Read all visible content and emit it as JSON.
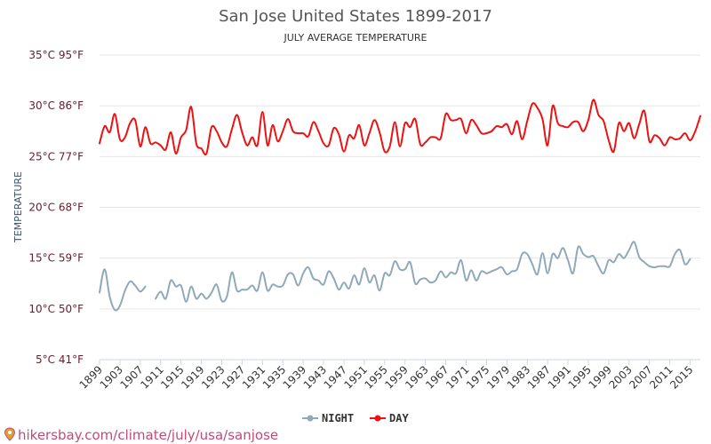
{
  "chart_data": {
    "type": "line",
    "title": "San Jose United States 1899-2017",
    "subtitle": "JULY AVERAGE TEMPERATURE",
    "ylabel": "TEMPERATURE",
    "xlabel": "",
    "ylim": [
      5,
      35
    ],
    "xlim": [
      1899,
      2017
    ],
    "y_ticks": [
      {
        "value": 35,
        "label": "35°C 95°F"
      },
      {
        "value": 30,
        "label": "30°C 86°F"
      },
      {
        "value": 25,
        "label": "25°C 77°F"
      },
      {
        "value": 20,
        "label": "20°C 68°F"
      },
      {
        "value": 15,
        "label": "15°C 59°F"
      },
      {
        "value": 10,
        "label": "10°C 50°F"
      },
      {
        "value": 5,
        "label": "5°C 41°F"
      }
    ],
    "x_ticks": [
      1899,
      1903,
      1907,
      1911,
      1915,
      1919,
      1923,
      1927,
      1931,
      1935,
      1939,
      1943,
      1947,
      1951,
      1955,
      1959,
      1963,
      1967,
      1971,
      1975,
      1979,
      1983,
      1987,
      1991,
      1995,
      1999,
      2003,
      2007,
      2011,
      2015
    ],
    "grid": "horizontal",
    "legend_position": "bottom",
    "series": [
      {
        "name": "NIGHT",
        "color": "#8fa9b8",
        "points": [
          [
            1899,
            11.6
          ],
          [
            1900,
            13.9
          ],
          [
            1901,
            11.2
          ],
          [
            1902,
            9.9
          ],
          [
            1903,
            10.3
          ],
          [
            1904,
            11.8
          ],
          [
            1905,
            12.7
          ],
          [
            1906,
            12.3
          ],
          [
            1907,
            11.7
          ],
          [
            1908,
            12.2
          ],
          [
            1910,
            11.0
          ],
          [
            1911,
            11.7
          ],
          [
            1912,
            11.0
          ],
          [
            1913,
            12.8
          ],
          [
            1914,
            12.2
          ],
          [
            1915,
            12.3
          ],
          [
            1916,
            10.7
          ],
          [
            1917,
            12.2
          ],
          [
            1918,
            11.0
          ],
          [
            1919,
            11.5
          ],
          [
            1920,
            11.0
          ],
          [
            1921,
            11.6
          ],
          [
            1922,
            12.4
          ],
          [
            1923,
            10.8
          ],
          [
            1924,
            11.2
          ],
          [
            1925,
            13.6
          ],
          [
            1926,
            11.8
          ],
          [
            1927,
            11.9
          ],
          [
            1928,
            11.9
          ],
          [
            1929,
            12.3
          ],
          [
            1930,
            11.8
          ],
          [
            1931,
            13.6
          ],
          [
            1932,
            11.8
          ],
          [
            1933,
            12.4
          ],
          [
            1934,
            12.2
          ],
          [
            1935,
            12.3
          ],
          [
            1936,
            13.4
          ],
          [
            1937,
            13.4
          ],
          [
            1938,
            12.3
          ],
          [
            1939,
            13.5
          ],
          [
            1940,
            14.1
          ],
          [
            1941,
            13.0
          ],
          [
            1942,
            12.8
          ],
          [
            1943,
            12.4
          ],
          [
            1944,
            13.7
          ],
          [
            1945,
            13.0
          ],
          [
            1946,
            11.9
          ],
          [
            1947,
            12.6
          ],
          [
            1948,
            12.0
          ],
          [
            1949,
            13.3
          ],
          [
            1950,
            12.4
          ],
          [
            1951,
            14.0
          ],
          [
            1952,
            12.6
          ],
          [
            1953,
            13.3
          ],
          [
            1954,
            11.8
          ],
          [
            1955,
            13.5
          ],
          [
            1956,
            13.3
          ],
          [
            1957,
            14.7
          ],
          [
            1958,
            13.9
          ],
          [
            1959,
            13.9
          ],
          [
            1960,
            14.6
          ],
          [
            1961,
            12.5
          ],
          [
            1962,
            12.9
          ],
          [
            1963,
            13.0
          ],
          [
            1964,
            12.6
          ],
          [
            1965,
            12.8
          ],
          [
            1966,
            13.7
          ],
          [
            1967,
            13.1
          ],
          [
            1968,
            13.6
          ],
          [
            1969,
            13.5
          ],
          [
            1970,
            14.8
          ],
          [
            1971,
            12.8
          ],
          [
            1972,
            13.8
          ],
          [
            1973,
            12.8
          ],
          [
            1974,
            13.7
          ],
          [
            1975,
            13.5
          ],
          [
            1976,
            13.7
          ],
          [
            1977,
            13.9
          ],
          [
            1978,
            14.1
          ],
          [
            1979,
            13.4
          ],
          [
            1980,
            13.7
          ],
          [
            1981,
            13.9
          ],
          [
            1982,
            15.4
          ],
          [
            1983,
            15.4
          ],
          [
            1984,
            14.4
          ],
          [
            1985,
            13.4
          ],
          [
            1986,
            15.5
          ],
          [
            1987,
            13.5
          ],
          [
            1988,
            15.4
          ],
          [
            1989,
            15.0
          ],
          [
            1990,
            16.0
          ],
          [
            1991,
            14.8
          ],
          [
            1992,
            13.5
          ],
          [
            1993,
            16.1
          ],
          [
            1994,
            15.4
          ],
          [
            1995,
            15.1
          ],
          [
            1996,
            15.2
          ],
          [
            1997,
            14.2
          ],
          [
            1998,
            13.5
          ],
          [
            1999,
            14.8
          ],
          [
            2000,
            14.6
          ],
          [
            2001,
            15.4
          ],
          [
            2002,
            15.0
          ],
          [
            2003,
            15.8
          ],
          [
            2004,
            16.6
          ],
          [
            2005,
            15.1
          ],
          [
            2006,
            14.6
          ],
          [
            2007,
            14.2
          ],
          [
            2008,
            14.1
          ],
          [
            2009,
            14.2
          ],
          [
            2010,
            14.2
          ],
          [
            2011,
            14.2
          ],
          [
            2012,
            15.4
          ],
          [
            2013,
            15.8
          ],
          [
            2014,
            14.4
          ],
          [
            2015,
            14.9
          ]
        ]
      },
      {
        "name": "DAY",
        "color": "#ee1111",
        "points": [
          [
            1899,
            26.3
          ],
          [
            1900,
            28.0
          ],
          [
            1901,
            27.4
          ],
          [
            1902,
            29.2
          ],
          [
            1903,
            26.7
          ],
          [
            1904,
            26.9
          ],
          [
            1905,
            28.3
          ],
          [
            1906,
            28.6
          ],
          [
            1907,
            26.0
          ],
          [
            1908,
            27.9
          ],
          [
            1909,
            26.3
          ],
          [
            1910,
            26.4
          ],
          [
            1911,
            26.1
          ],
          [
            1912,
            25.7
          ],
          [
            1913,
            27.4
          ],
          [
            1914,
            25.3
          ],
          [
            1915,
            26.9
          ],
          [
            1916,
            27.6
          ],
          [
            1917,
            29.9
          ],
          [
            1918,
            26.3
          ],
          [
            1919,
            25.8
          ],
          [
            1920,
            25.3
          ],
          [
            1921,
            27.9
          ],
          [
            1922,
            27.5
          ],
          [
            1923,
            26.4
          ],
          [
            1924,
            26.0
          ],
          [
            1925,
            27.7
          ],
          [
            1926,
            29.1
          ],
          [
            1927,
            27.4
          ],
          [
            1928,
            26.1
          ],
          [
            1929,
            26.9
          ],
          [
            1930,
            26.1
          ],
          [
            1931,
            29.4
          ],
          [
            1932,
            26.1
          ],
          [
            1933,
            28.1
          ],
          [
            1934,
            26.5
          ],
          [
            1935,
            27.5
          ],
          [
            1936,
            28.7
          ],
          [
            1937,
            27.5
          ],
          [
            1938,
            27.3
          ],
          [
            1939,
            27.3
          ],
          [
            1940,
            27.0
          ],
          [
            1941,
            28.4
          ],
          [
            1942,
            27.5
          ],
          [
            1943,
            26.3
          ],
          [
            1944,
            26.1
          ],
          [
            1945,
            27.8
          ],
          [
            1946,
            27.2
          ],
          [
            1947,
            25.5
          ],
          [
            1948,
            27.1
          ],
          [
            1949,
            26.8
          ],
          [
            1950,
            28.1
          ],
          [
            1951,
            26.1
          ],
          [
            1952,
            27.3
          ],
          [
            1953,
            28.6
          ],
          [
            1954,
            27.4
          ],
          [
            1955,
            25.5
          ],
          [
            1956,
            26.0
          ],
          [
            1957,
            28.4
          ],
          [
            1958,
            26.0
          ],
          [
            1959,
            28.3
          ],
          [
            1960,
            27.9
          ],
          [
            1961,
            28.7
          ],
          [
            1962,
            26.2
          ],
          [
            1963,
            26.4
          ],
          [
            1964,
            26.9
          ],
          [
            1965,
            26.9
          ],
          [
            1966,
            26.8
          ],
          [
            1967,
            29.2
          ],
          [
            1968,
            28.6
          ],
          [
            1969,
            28.6
          ],
          [
            1970,
            28.7
          ],
          [
            1971,
            27.3
          ],
          [
            1972,
            28.6
          ],
          [
            1973,
            28.1
          ],
          [
            1974,
            27.3
          ],
          [
            1975,
            27.3
          ],
          [
            1976,
            27.5
          ],
          [
            1977,
            28.0
          ],
          [
            1978,
            27.9
          ],
          [
            1979,
            28.2
          ],
          [
            1980,
            27.2
          ],
          [
            1981,
            28.5
          ],
          [
            1982,
            26.7
          ],
          [
            1983,
            28.5
          ],
          [
            1984,
            30.2
          ],
          [
            1985,
            29.8
          ],
          [
            1986,
            28.7
          ],
          [
            1987,
            26.1
          ],
          [
            1988,
            30.0
          ],
          [
            1989,
            28.3
          ],
          [
            1990,
            28.0
          ],
          [
            1991,
            27.9
          ],
          [
            1992,
            28.4
          ],
          [
            1993,
            28.4
          ],
          [
            1994,
            27.5
          ],
          [
            1995,
            28.6
          ],
          [
            1996,
            30.6
          ],
          [
            1997,
            29.1
          ],
          [
            1998,
            28.5
          ],
          [
            1999,
            26.6
          ],
          [
            2000,
            25.5
          ],
          [
            2001,
            28.3
          ],
          [
            2002,
            27.5
          ],
          [
            2003,
            28.3
          ],
          [
            2004,
            26.8
          ],
          [
            2005,
            28.2
          ],
          [
            2006,
            29.5
          ],
          [
            2007,
            26.5
          ],
          [
            2008,
            27.1
          ],
          [
            2009,
            26.8
          ],
          [
            2010,
            26.1
          ],
          [
            2011,
            26.9
          ],
          [
            2012,
            26.7
          ],
          [
            2013,
            26.8
          ],
          [
            2014,
            27.3
          ],
          [
            2015,
            26.6
          ],
          [
            2016,
            27.5
          ],
          [
            2017,
            29.0
          ]
        ]
      }
    ]
  },
  "legend": {
    "items": [
      {
        "label": "NIGHT",
        "color": "#8fa9b8"
      },
      {
        "label": "DAY",
        "color": "#ee1111"
      }
    ]
  },
  "watermark": {
    "text": "hikersbay.com/climate/july/usa/sanjose",
    "icon": "location-pin-icon",
    "color": "#c24a79"
  }
}
